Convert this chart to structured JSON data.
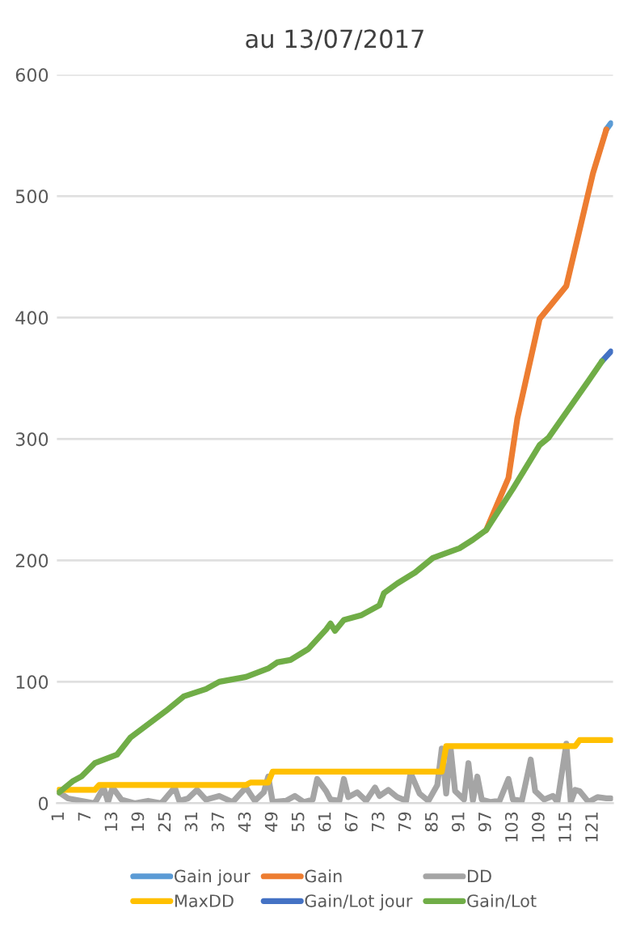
{
  "chart_data": {
    "type": "line",
    "title": "au 13/07/2017",
    "xlim": [
      0.5,
      125.5
    ],
    "xticks": [
      1,
      7,
      13,
      19,
      25,
      31,
      37,
      43,
      49,
      55,
      61,
      67,
      73,
      79,
      85,
      91,
      97,
      103,
      109,
      115,
      121
    ],
    "ylim": [
      0,
      600
    ],
    "yticks": [
      0,
      100,
      200,
      300,
      400,
      500,
      600
    ],
    "grid": "y",
    "legend": "bottom",
    "line_style": "solid",
    "marker": "none",
    "series": [
      {
        "name": "Gain jour",
        "color": "#5b9bd5",
        "x": [
          124,
          125
        ],
        "values": [
          555,
          560
        ]
      },
      {
        "name": "Gain",
        "color": "#ed7d31",
        "x": [
          97,
          102,
          104,
          109,
          115,
          119,
          121,
          124
        ],
        "values": [
          225,
          268,
          317,
          399,
          426,
          488,
          519,
          555
        ]
      },
      {
        "name": "DD",
        "color": "#a5a5a5",
        "x": [
          1,
          3,
          6,
          9,
          11,
          12,
          13,
          15,
          18,
          21,
          24,
          27,
          28,
          30,
          32,
          34,
          37,
          40,
          43,
          45,
          47,
          48,
          49,
          52,
          54,
          56,
          58,
          59,
          61,
          62,
          64,
          65,
          66,
          68,
          70,
          72,
          73,
          75,
          77,
          79,
          80,
          82,
          84,
          86,
          87,
          88,
          89,
          90,
          92,
          93,
          94,
          95,
          96,
          98,
          100,
          102,
          103,
          105,
          107,
          108,
          110,
          112,
          113,
          115,
          116,
          117,
          118,
          120,
          122,
          124,
          125
        ],
        "values": [
          9,
          4,
          2,
          0,
          13,
          1,
          13,
          3,
          0,
          2,
          0,
          13,
          2,
          4,
          11,
          3,
          6,
          1,
          13,
          2,
          9,
          22,
          1,
          2,
          6,
          1,
          3,
          20,
          10,
          3,
          2,
          20,
          5,
          9,
          2,
          13,
          6,
          11,
          5,
          2,
          25,
          8,
          2,
          15,
          45,
          8,
          45,
          10,
          3,
          33,
          2,
          22,
          3,
          1,
          2,
          20,
          3,
          2,
          36,
          10,
          3,
          6,
          1,
          49,
          1,
          11,
          10,
          1,
          5,
          4,
          4
        ]
      },
      {
        "name": "MaxDD",
        "color": "#ffc000",
        "x": [
          1,
          9,
          10,
          43,
          44,
          48,
          49,
          87,
          88,
          117,
          118,
          125
        ],
        "values": [
          11,
          11,
          15,
          15,
          17,
          17,
          26,
          26,
          47,
          47,
          52,
          52
        ]
      },
      {
        "name": "Gain/Lot jour",
        "color": "#4472c4",
        "x": [
          123,
          124,
          125
        ],
        "values": [
          364,
          368,
          372
        ]
      },
      {
        "name": "Gain/Lot",
        "color": "#70ad47",
        "x": [
          1,
          4,
          6,
          9,
          14,
          17,
          21,
          25,
          29,
          34,
          37,
          43,
          48,
          50,
          53,
          57,
          61,
          62,
          63,
          65,
          69,
          73,
          74,
          77,
          81,
          85,
          91,
          94,
          97,
          103,
          109,
          111,
          120,
          123
        ],
        "values": [
          9,
          18,
          22,
          33,
          40,
          54,
          65,
          76,
          88,
          94,
          100,
          104,
          111,
          116,
          118,
          127,
          143,
          148,
          142,
          151,
          155,
          163,
          173,
          181,
          190,
          202,
          210,
          217,
          225,
          259,
          295,
          301,
          348,
          364
        ]
      }
    ]
  }
}
